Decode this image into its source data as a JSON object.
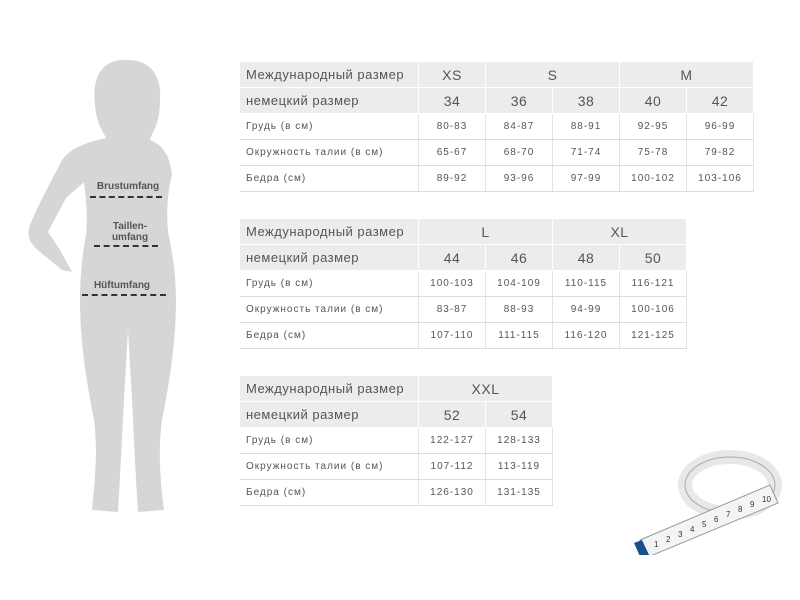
{
  "figure": {
    "labels": [
      "Brustumfang",
      "Taillen-\numfang",
      "Hüftumfang"
    ]
  },
  "tables": [
    {
      "groups": [
        {
          "label": "XS",
          "span": 1
        },
        {
          "label": "S",
          "span": 2
        },
        {
          "label": "M",
          "span": 2
        }
      ],
      "header_label": "Международный размер",
      "sub_label": "немецкий размер",
      "sizes": [
        "34",
        "36",
        "38",
        "40",
        "42"
      ],
      "rows": [
        {
          "label": "Грудь (в см)",
          "values": [
            "80-83",
            "84-87",
            "88-91",
            "92-95",
            "96-99"
          ]
        },
        {
          "label": "Окружность талии (в см)",
          "values": [
            "65-67",
            "68-70",
            "71-74",
            "75-78",
            "79-82"
          ]
        },
        {
          "label": "Бедра (см)",
          "values": [
            "89-92",
            "93-96",
            "97-99",
            "100-102",
            "103-106"
          ]
        }
      ]
    },
    {
      "groups": [
        {
          "label": "L",
          "span": 2
        },
        {
          "label": "XL",
          "span": 2
        }
      ],
      "header_label": "Международный размер",
      "sub_label": "немецкий размер",
      "sizes": [
        "44",
        "46",
        "48",
        "50"
      ],
      "rows": [
        {
          "label": "Грудь (в см)",
          "values": [
            "100-103",
            "104-109",
            "110-115",
            "116-121"
          ]
        },
        {
          "label": "Окружность талии (в см)",
          "values": [
            "83-87",
            "88-93",
            "94-99",
            "100-106"
          ]
        },
        {
          "label": "Бедра (см)",
          "values": [
            "107-110",
            "111-115",
            "116-120",
            "121-125"
          ]
        }
      ]
    },
    {
      "groups": [
        {
          "label": "XXL",
          "span": 2
        }
      ],
      "header_label": "Международный размер",
      "sub_label": "немецкий размер",
      "sizes": [
        "52",
        "54"
      ],
      "rows": [
        {
          "label": "Грудь (в см)",
          "values": [
            "122-127",
            "128-133"
          ]
        },
        {
          "label": "Окружность талии (в см)",
          "values": [
            "107-112",
            "113-119"
          ]
        },
        {
          "label": "Бедра (см)",
          "values": [
            "126-130",
            "131-135"
          ]
        }
      ]
    }
  ],
  "tape_measure": {
    "numbers": [
      "1",
      "2",
      "3",
      "4",
      "5",
      "6",
      "7",
      "8",
      "9",
      "10"
    ]
  }
}
